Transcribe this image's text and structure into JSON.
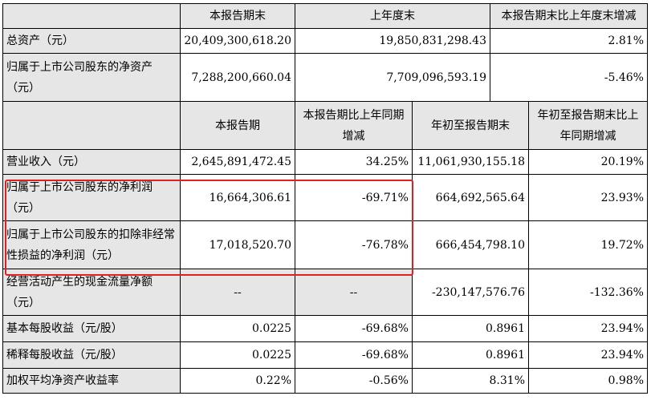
{
  "balance_header": [
    "",
    "本报告期末",
    "上年度末",
    "本报告期末比上年度末增减"
  ],
  "balance_rows": [
    {
      "label": "总资产（元）",
      "current": "20,409,300,618.20",
      "prior": "19,850,831,298.43",
      "change": "2.81%"
    },
    {
      "label": "归属于上市公司股东的净资产（元）",
      "current": "7,288,200,660.04",
      "prior": "7,709,096,593.19",
      "change": "-5.46%"
    }
  ],
  "income_header": [
    "",
    "本报告期",
    "本报告期比上年同期增减",
    "年初至报告期末",
    "年初至报告期末比上年同期增减"
  ],
  "income_rows": [
    {
      "label": "营业收入（元）",
      "period": "2,645,891,472.45",
      "period_change": "34.25%",
      "ytd": "11,061,930,155.18",
      "ytd_change": "20.19%"
    },
    {
      "label": "归属于上市公司股东的净利润（元）",
      "period": "16,664,306.61",
      "period_change": "-69.71%",
      "ytd": "664,692,565.64",
      "ytd_change": "23.93%"
    },
    {
      "label": "归属于上市公司股东的扣除非经常性损益的净利润（元）",
      "period": "17,018,520.70",
      "period_change": "-76.78%",
      "ytd": "666,454,798.10",
      "ytd_change": "19.72%"
    },
    {
      "label": "经营活动产生的现金流量净额（元）",
      "period": "--",
      "period_change": "--",
      "ytd": "-230,147,576.76",
      "ytd_change": "-132.36%"
    },
    {
      "label": "基本每股收益（元/股）",
      "period": "0.0225",
      "period_change": "-69.68%",
      "ytd": "0.8961",
      "ytd_change": "23.94%"
    },
    {
      "label": "稀释每股收益（元/股）",
      "period": "0.0225",
      "period_change": "-69.68%",
      "ytd": "0.8961",
      "ytd_change": "23.94%"
    },
    {
      "label": "加权平均净资产收益率",
      "period": "0.22%",
      "period_change": "-0.56%",
      "ytd": "8.31%",
      "ytd_change": "0.98%"
    }
  ],
  "highlight_color": "#e02020"
}
